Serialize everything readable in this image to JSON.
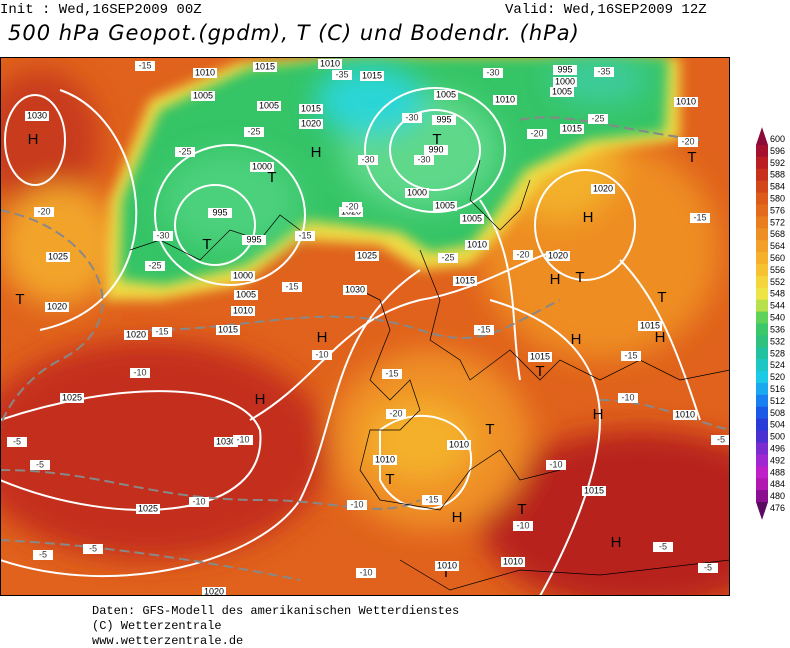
{
  "header": {
    "init": "Init : Wed,16SEP2009 00Z",
    "valid": "Valid: Wed,16SEP2009 12Z",
    "title": "500 hPa Geopot.(gpdm), T (C) und Bodendr. (hPa)"
  },
  "colorbar": {
    "labels": [
      "600",
      "596",
      "592",
      "588",
      "584",
      "580",
      "576",
      "572",
      "568",
      "564",
      "560",
      "556",
      "552",
      "548",
      "544",
      "540",
      "536",
      "532",
      "528",
      "524",
      "520",
      "516",
      "512",
      "508",
      "504",
      "500",
      "496",
      "492",
      "488",
      "484",
      "480",
      "476"
    ],
    "colors": [
      "#8b0a3a",
      "#a4102e",
      "#bb1e22",
      "#c8301c",
      "#d2461a",
      "#dc5a1a",
      "#e36c1c",
      "#e97e1f",
      "#ee8f24",
      "#f2a028",
      "#f5b02c",
      "#f7c232",
      "#f4d53c",
      "#eee447",
      "#b8e04a",
      "#5fd25a",
      "#3cc86a",
      "#2ec27e",
      "#22c2a0",
      "#1ec7c4",
      "#1cc9e6",
      "#1aa8f0",
      "#1a7ff0",
      "#1a58e8",
      "#2a3ad8",
      "#4a30d0",
      "#7a2cd0",
      "#a028d0",
      "#c020c8",
      "#b018b0",
      "#8a1090",
      "#5a0a60"
    ]
  },
  "map": {
    "pressure_centers": [
      "H",
      "T",
      "H",
      "T",
      "T",
      "T",
      "H",
      "H",
      "T",
      "T",
      "H",
      "H",
      "H",
      "T",
      "H",
      "H",
      "T",
      "T",
      "H",
      "T",
      "H",
      "T",
      "T"
    ],
    "isobar_labels": [
      "1010",
      "1015",
      "1010",
      "1015",
      "995",
      "1000",
      "1005",
      "1005",
      "1005",
      "1015",
      "1005",
      "995",
      "1020",
      "1010",
      "1015",
      "1010",
      "1030",
      "1000",
      "990",
      "995",
      "995",
      "1000",
      "1005",
      "1005",
      "1020",
      "1010",
      "1020",
      "1025",
      "1020",
      "1025",
      "1000",
      "1005",
      "1015",
      "1030",
      "1010",
      "1020",
      "1015",
      "1020",
      "1015",
      "1015",
      "1025",
      "1010",
      "1030",
      "1010",
      "1010",
      "1015",
      "1025",
      "1010",
      "1010",
      "1020"
    ],
    "temperature_labels": [
      "-15",
      "-35",
      "-30",
      "-35",
      "-25",
      "-25",
      "-25",
      "-20",
      "-20",
      "-30",
      "-30",
      "-30",
      "-20",
      "-30",
      "-15",
      "-20",
      "-15",
      "-25",
      "-20",
      "-25",
      "-15",
      "-10",
      "-15",
      "-15",
      "-10",
      "-15",
      "-15",
      "-20",
      "-10",
      "-10",
      "-5",
      "-5",
      "-10",
      "-10",
      "-10",
      "-15",
      "-10",
      "-5",
      "-5",
      "-5",
      "-10",
      "-5",
      "-5"
    ]
  },
  "footer": {
    "lines": [
      "Daten: GFS-Modell des amerikanischen Wetterdienstes",
      "(C) Wetterzentrale",
      "www.wetterzentrale.de"
    ]
  }
}
